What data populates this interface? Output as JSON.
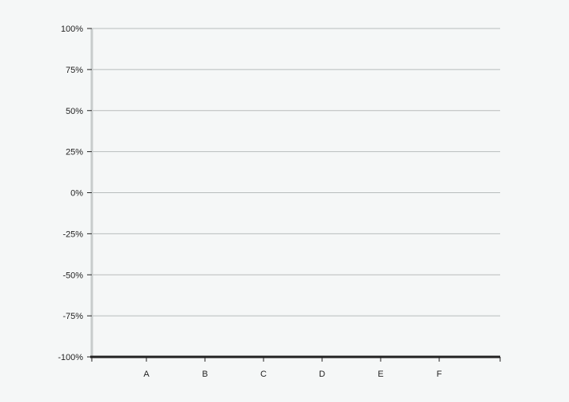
{
  "chart_data": {
    "type": "bar",
    "categories": [
      "A",
      "B",
      "C",
      "D",
      "E",
      "F"
    ],
    "series": [],
    "ylim": [
      -1,
      1
    ],
    "yticks": [
      1,
      0.75,
      0.5,
      0.25,
      0,
      -0.25,
      -0.5,
      -0.75,
      -1
    ],
    "ytick_labels": [
      "100%",
      "75%",
      "50%",
      "25%",
      "0%",
      "-25%",
      "-50%",
      "-75%",
      "-100%"
    ],
    "grid": true,
    "title": "",
    "xlabel": "",
    "ylabel": ""
  },
  "colors": {
    "background": "#f5f7f7",
    "gridline": "#b8bcbc",
    "axis": "#222222",
    "y_axis_line": "#c8cccc"
  }
}
